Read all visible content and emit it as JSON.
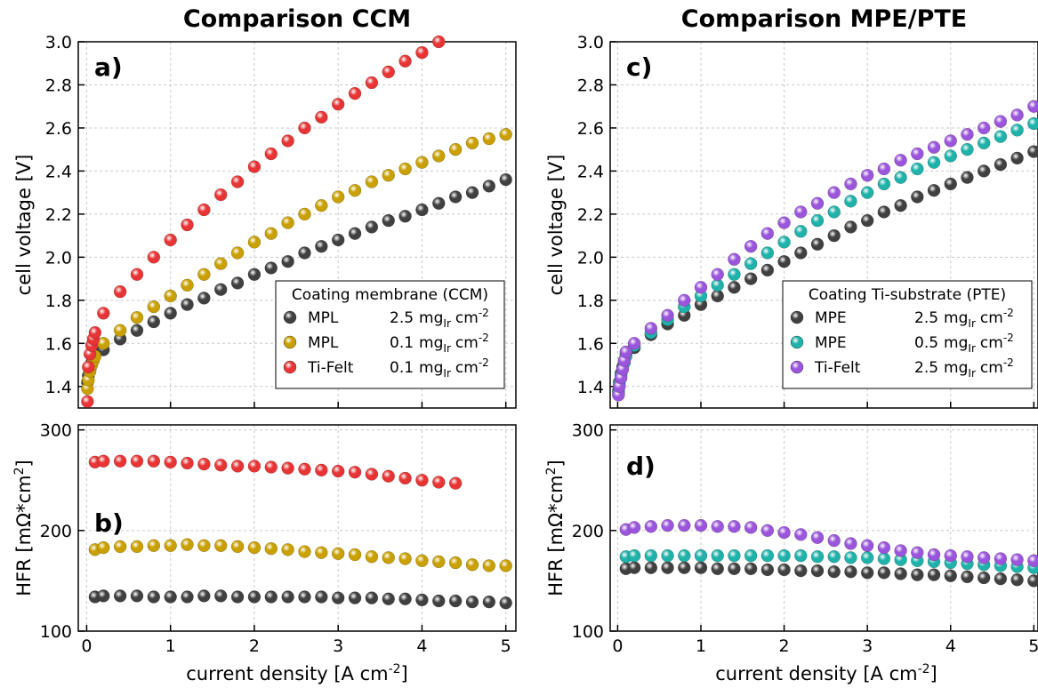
{
  "chart_data": [
    {
      "type": "scatter",
      "title": "Comparison CCM",
      "annotation": "a)",
      "ylabel": "cell voltage [V]",
      "xlim": [
        -0.1,
        5.12
      ],
      "ylim": [
        1.3,
        3.0
      ],
      "xticks": [
        0,
        1,
        2,
        3,
        4,
        5
      ],
      "yticks": [
        1.4,
        1.6,
        1.8,
        {
          "value": 2,
          "label": "2.0"
        },
        2.2,
        2.4,
        2.6,
        2.8,
        {
          "value": 3,
          "label": "3.0"
        }
      ],
      "grid": true,
      "legend": "lower right",
      "legend_title": "Coating membrane (CCM)",
      "series": [
        {
          "name": "MPL",
          "loading": "2.5",
          "unit": "mg",
          "unit_sub": "Ir",
          "per": "cm",
          "per_sup": "-2",
          "color": "#404040",
          "x": [
            0.01,
            0.02,
            0.04,
            0.06,
            0.08,
            0.1,
            0.2,
            0.4,
            0.6,
            0.8,
            1.0,
            1.2,
            1.4,
            1.6,
            1.8,
            2.0,
            2.2,
            2.4,
            2.6,
            2.8,
            3.0,
            3.2,
            3.4,
            3.6,
            3.8,
            4.0,
            4.2,
            4.4,
            4.6,
            4.8,
            5.0
          ],
          "values": [
            1.42,
            1.45,
            1.48,
            1.51,
            1.53,
            1.55,
            1.57,
            1.62,
            1.66,
            1.7,
            1.74,
            1.78,
            1.81,
            1.85,
            1.88,
            1.92,
            1.95,
            1.98,
            2.02,
            2.05,
            2.08,
            2.11,
            2.14,
            2.17,
            2.19,
            2.22,
            2.25,
            2.28,
            2.3,
            2.33,
            2.36
          ]
        },
        {
          "name": "MPL",
          "loading": "0.1",
          "unit": "mg",
          "unit_sub": "Ir",
          "per": "cm",
          "per_sup": "-2",
          "color": "#c9a000",
          "x": [
            0.01,
            0.02,
            0.04,
            0.06,
            0.08,
            0.1,
            0.2,
            0.4,
            0.6,
            0.8,
            1.0,
            1.2,
            1.4,
            1.6,
            1.8,
            2.0,
            2.2,
            2.4,
            2.6,
            2.8,
            3.0,
            3.2,
            3.4,
            3.6,
            3.8,
            4.0,
            4.2,
            4.4,
            4.6,
            4.8,
            5.0
          ],
          "values": [
            1.39,
            1.43,
            1.47,
            1.5,
            1.52,
            1.54,
            1.6,
            1.66,
            1.72,
            1.77,
            1.82,
            1.87,
            1.92,
            1.97,
            2.02,
            2.07,
            2.11,
            2.16,
            2.2,
            2.24,
            2.28,
            2.31,
            2.35,
            2.38,
            2.41,
            2.44,
            2.47,
            2.5,
            2.53,
            2.55,
            2.57
          ]
        },
        {
          "name": "Ti-Felt",
          "loading": "0.1",
          "unit": "mg",
          "unit_sub": "Ir",
          "per": "cm",
          "per_sup": "-2",
          "color": "#e83434",
          "x": [
            0.01,
            0.02,
            0.04,
            0.06,
            0.08,
            0.1,
            0.2,
            0.4,
            0.6,
            0.8,
            1.0,
            1.2,
            1.4,
            1.6,
            1.8,
            2.0,
            2.2,
            2.4,
            2.6,
            2.8,
            3.0,
            3.2,
            3.4,
            3.6,
            3.8,
            4.0,
            4.2
          ],
          "values": [
            1.33,
            1.49,
            1.55,
            1.59,
            1.62,
            1.65,
            1.74,
            1.84,
            1.92,
            2.0,
            2.08,
            2.15,
            2.22,
            2.29,
            2.35,
            2.42,
            2.48,
            2.54,
            2.6,
            2.65,
            2.71,
            2.76,
            2.81,
            2.86,
            2.91,
            2.95,
            3.0
          ]
        }
      ]
    },
    {
      "type": "scatter",
      "annotation": "b)",
      "ylabel": "HFR [mΩ*cm",
      "ylabel_sup": "2",
      "ylabel_end": "]",
      "xlabel": "current density [A cm",
      "xlabel_sup": "-2",
      "xlabel_end": "]",
      "xlim": [
        -0.1,
        5.12
      ],
      "ylim": [
        100,
        305
      ],
      "xticks": [
        0,
        1,
        2,
        3,
        4,
        5
      ],
      "yticks": [
        100,
        200,
        300
      ],
      "grid": true,
      "series": [
        {
          "color": "#404040",
          "x": [
            0.1,
            0.2,
            0.4,
            0.6,
            0.8,
            1.0,
            1.2,
            1.4,
            1.6,
            1.8,
            2.0,
            2.2,
            2.4,
            2.6,
            2.8,
            3.0,
            3.2,
            3.4,
            3.6,
            3.8,
            4.0,
            4.2,
            4.4,
            4.6,
            4.8,
            5.0
          ],
          "values": [
            134,
            135,
            135,
            135,
            134,
            134,
            134,
            135,
            135,
            134,
            134,
            134,
            134,
            134,
            134,
            133,
            133,
            133,
            132,
            132,
            131,
            130,
            130,
            129,
            129,
            128
          ]
        },
        {
          "color": "#c9a000",
          "x": [
            0.1,
            0.2,
            0.4,
            0.6,
            0.8,
            1.0,
            1.2,
            1.4,
            1.6,
            1.8,
            2.0,
            2.2,
            2.4,
            2.6,
            2.8,
            3.0,
            3.2,
            3.4,
            3.6,
            3.8,
            4.0,
            4.2,
            4.4,
            4.6,
            4.8,
            5.0
          ],
          "values": [
            181,
            183,
            184,
            184,
            185,
            185,
            186,
            185,
            185,
            184,
            183,
            182,
            181,
            179,
            178,
            177,
            176,
            174,
            173,
            172,
            170,
            169,
            168,
            166,
            165,
            165
          ]
        },
        {
          "color": "#e83434",
          "x": [
            0.1,
            0.2,
            0.4,
            0.6,
            0.8,
            1.0,
            1.2,
            1.4,
            1.6,
            1.8,
            2.0,
            2.2,
            2.4,
            2.6,
            2.8,
            3.0,
            3.2,
            3.4,
            3.6,
            3.8,
            4.0,
            4.2,
            4.4
          ],
          "values": [
            268,
            269,
            269,
            269,
            269,
            268,
            267,
            266,
            265,
            264,
            264,
            263,
            262,
            261,
            260,
            259,
            258,
            256,
            254,
            252,
            250,
            248,
            247
          ]
        }
      ]
    },
    {
      "type": "scatter",
      "title": "Comparison MPE/PTE",
      "annotation": "c)",
      "ylabel": "cell voltage [V]",
      "xlim": [
        -0.09,
        5.05
      ],
      "ylim": [
        1.3,
        3.0
      ],
      "xticks": [
        0,
        1,
        2,
        3,
        4,
        5
      ],
      "yticks": [
        1.4,
        1.6,
        1.8,
        {
          "value": 2,
          "label": "2.0"
        },
        2.2,
        2.4,
        2.6,
        2.8,
        {
          "value": 3,
          "label": "3.0"
        }
      ],
      "grid": true,
      "legend": "lower right",
      "legend_title": "Coating Ti-substrate (PTE)",
      "series": [
        {
          "name": "MPE",
          "loading": "2.5",
          "unit": "mg",
          "unit_sub": "Ir",
          "per": "cm",
          "per_sup": "-2",
          "color": "#404040",
          "x": [
            0.01,
            0.02,
            0.04,
            0.06,
            0.08,
            0.1,
            0.2,
            0.4,
            0.6,
            0.8,
            1.0,
            1.2,
            1.4,
            1.6,
            1.8,
            2.0,
            2.2,
            2.4,
            2.6,
            2.8,
            3.0,
            3.2,
            3.4,
            3.6,
            3.8,
            4.0,
            4.2,
            4.4,
            4.6,
            4.8,
            5.0
          ],
          "values": [
            1.38,
            1.42,
            1.46,
            1.49,
            1.52,
            1.55,
            1.58,
            1.64,
            1.69,
            1.73,
            1.78,
            1.82,
            1.86,
            1.9,
            1.94,
            1.98,
            2.02,
            2.06,
            2.1,
            2.14,
            2.17,
            2.21,
            2.24,
            2.28,
            2.31,
            2.34,
            2.37,
            2.4,
            2.43,
            2.46,
            2.49
          ]
        },
        {
          "name": "MPE",
          "loading": "0.5",
          "unit": "mg",
          "unit_sub": "Ir",
          "per": "cm",
          "per_sup": "-2",
          "color": "#1fb2aa",
          "x": [
            0.01,
            0.02,
            0.04,
            0.06,
            0.08,
            0.1,
            0.2,
            0.4,
            0.6,
            0.8,
            1.0,
            1.2,
            1.4,
            1.6,
            1.8,
            2.0,
            2.2,
            2.4,
            2.6,
            2.8,
            3.0,
            3.2,
            3.4,
            3.6,
            3.8,
            4.0,
            4.2,
            4.4,
            4.6,
            4.8,
            5.0
          ],
          "values": [
            1.37,
            1.41,
            1.45,
            1.48,
            1.51,
            1.54,
            1.59,
            1.65,
            1.71,
            1.77,
            1.82,
            1.87,
            1.92,
            1.97,
            2.02,
            2.07,
            2.12,
            2.17,
            2.21,
            2.26,
            2.3,
            2.34,
            2.37,
            2.41,
            2.44,
            2.47,
            2.5,
            2.53,
            2.56,
            2.59,
            2.62
          ]
        },
        {
          "name": "Ti-Felt",
          "loading": "2.5",
          "unit": "mg",
          "unit_sub": "Ir",
          "per": "cm",
          "per_sup": "-2",
          "color": "#9b55dc",
          "x": [
            0.01,
            0.02,
            0.04,
            0.06,
            0.08,
            0.1,
            0.2,
            0.4,
            0.6,
            0.8,
            1.0,
            1.2,
            1.4,
            1.6,
            1.8,
            2.0,
            2.2,
            2.4,
            2.6,
            2.8,
            3.0,
            3.2,
            3.4,
            3.6,
            3.8,
            4.0,
            4.2,
            4.4,
            4.6,
            4.8,
            5.0
          ],
          "values": [
            1.36,
            1.4,
            1.44,
            1.48,
            1.52,
            1.56,
            1.6,
            1.67,
            1.73,
            1.8,
            1.86,
            1.92,
            1.99,
            2.05,
            2.11,
            2.16,
            2.21,
            2.25,
            2.3,
            2.34,
            2.38,
            2.41,
            2.45,
            2.48,
            2.51,
            2.54,
            2.57,
            2.6,
            2.63,
            2.66,
            2.7
          ]
        }
      ]
    },
    {
      "type": "scatter",
      "annotation": "d)",
      "ylabel": "HFR [mΩ*cm",
      "ylabel_sup": "2",
      "ylabel_end": "]",
      "xlabel": "current density [A cm",
      "xlabel_sup": "-2",
      "xlabel_end": "]",
      "xlim": [
        -0.09,
        5.05
      ],
      "ylim": [
        100,
        305
      ],
      "xticks": [
        0,
        1,
        2,
        3,
        4,
        5
      ],
      "yticks": [
        100,
        200,
        300
      ],
      "grid": true,
      "series": [
        {
          "color": "#404040",
          "x": [
            0.1,
            0.2,
            0.4,
            0.6,
            0.8,
            1.0,
            1.2,
            1.4,
            1.6,
            1.8,
            2.0,
            2.2,
            2.4,
            2.6,
            2.8,
            3.0,
            3.2,
            3.4,
            3.6,
            3.8,
            4.0,
            4.2,
            4.4,
            4.6,
            4.8,
            5.0
          ],
          "values": [
            162,
            163,
            163,
            163,
            163,
            163,
            162,
            162,
            162,
            161,
            161,
            160,
            160,
            159,
            159,
            158,
            158,
            157,
            156,
            156,
            155,
            154,
            153,
            152,
            151,
            150
          ]
        },
        {
          "color": "#1fb2aa",
          "x": [
            0.1,
            0.2,
            0.4,
            0.6,
            0.8,
            1.0,
            1.2,
            1.4,
            1.6,
            1.8,
            2.0,
            2.2,
            2.4,
            2.6,
            2.8,
            3.0,
            3.2,
            3.4,
            3.6,
            3.8,
            4.0,
            4.2,
            4.4,
            4.6,
            4.8,
            5.0
          ],
          "values": [
            174,
            175,
            175,
            175,
            175,
            175,
            175,
            175,
            175,
            175,
            175,
            175,
            174,
            174,
            173,
            173,
            172,
            171,
            170,
            169,
            168,
            167,
            166,
            165,
            164,
            163
          ]
        },
        {
          "color": "#9b55dc",
          "x": [
            0.1,
            0.2,
            0.4,
            0.6,
            0.8,
            1.0,
            1.2,
            1.4,
            1.6,
            1.8,
            2.0,
            2.2,
            2.4,
            2.6,
            2.8,
            3.0,
            3.2,
            3.4,
            3.6,
            3.8,
            4.0,
            4.2,
            4.4,
            4.6,
            4.8,
            5.0
          ],
          "values": [
            201,
            203,
            204,
            205,
            205,
            205,
            204,
            204,
            203,
            200,
            198,
            196,
            193,
            190,
            187,
            185,
            183,
            180,
            178,
            176,
            175,
            174,
            173,
            172,
            171,
            170
          ]
        }
      ]
    }
  ]
}
